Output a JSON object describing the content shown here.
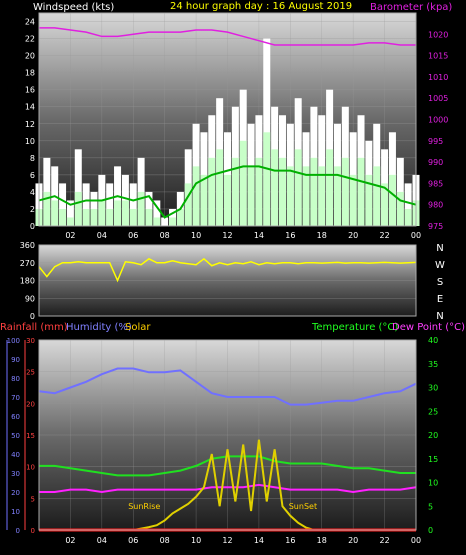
{
  "chart_data": [
    {
      "type": "line",
      "title": "24 hour graph day : 16 August 2019",
      "ylabel": "Windspeed (kts)",
      "y2label": "Barometer (kpa)",
      "ylim": [
        0,
        25
      ],
      "y2lim": [
        975,
        1025
      ],
      "yticks": [
        0,
        2,
        4,
        6,
        8,
        10,
        12,
        14,
        16,
        18,
        20,
        22,
        24
      ],
      "y2ticks": [
        975,
        980,
        985,
        990,
        995,
        1000,
        1005,
        1010,
        1015,
        1020
      ],
      "xticks": [
        "02",
        "04",
        "06",
        "08",
        "10",
        "12",
        "14",
        "16",
        "18",
        "20",
        "22",
        "00"
      ],
      "xlim": [
        0,
        24
      ],
      "grid": true,
      "colors": {
        "gust": "#ffffff",
        "speed": "#c8ffc8",
        "average": "#00b000",
        "barometer": "#e020e0",
        "title": "#ffff00"
      },
      "series": [
        {
          "name": "gust",
          "x": [
            0,
            0.5,
            1,
            1.5,
            2,
            2.5,
            3,
            3.5,
            4,
            4.5,
            5,
            5.5,
            6,
            6.5,
            7,
            7.5,
            8,
            8.5,
            9,
            9.5,
            10,
            10.5,
            11,
            11.5,
            12,
            12.5,
            13,
            13.5,
            14,
            14.5,
            15,
            15.5,
            16,
            16.5,
            17,
            17.5,
            18,
            18.5,
            19,
            19.5,
            20,
            20.5,
            21,
            21.5,
            22,
            22.5,
            23,
            23.5,
            24
          ],
          "values": [
            5,
            8,
            7,
            5,
            3,
            9,
            5,
            4,
            6,
            5,
            7,
            6,
            5,
            8,
            4,
            3,
            1,
            2,
            4,
            9,
            12,
            11,
            13,
            15,
            11,
            14,
            16,
            12,
            13,
            22,
            14,
            13,
            12,
            15,
            11,
            14,
            13,
            16,
            12,
            14,
            11,
            13,
            10,
            12,
            9,
            11,
            8,
            5,
            6
          ]
        },
        {
          "name": "speed",
          "x": [
            0,
            0.5,
            1,
            1.5,
            2,
            2.5,
            3,
            3.5,
            4,
            4.5,
            5,
            5.5,
            6,
            6.5,
            7,
            7.5,
            8,
            8.5,
            9,
            9.5,
            10,
            10.5,
            11,
            11.5,
            12,
            12.5,
            13,
            13.5,
            14,
            14.5,
            15,
            15.5,
            16,
            16.5,
            17,
            17.5,
            18,
            18.5,
            19,
            19.5,
            20,
            20.5,
            21,
            21.5,
            22,
            22.5,
            23,
            23.5,
            24
          ],
          "values": [
            2,
            4,
            3,
            2,
            1,
            4,
            2,
            2,
            3,
            2,
            3,
            3,
            2,
            4,
            2,
            1,
            0,
            1,
            2,
            5,
            7,
            6,
            8,
            9,
            6,
            8,
            10,
            7,
            8,
            11,
            9,
            8,
            7,
            9,
            7,
            8,
            7,
            9,
            7,
            8,
            6,
            8,
            6,
            7,
            5,
            6,
            4,
            2,
            3
          ]
        },
        {
          "name": "average",
          "x": [
            0,
            1,
            2,
            3,
            4,
            5,
            6,
            7,
            8,
            9,
            10,
            11,
            12,
            13,
            14,
            15,
            16,
            17,
            18,
            19,
            20,
            21,
            22,
            23,
            24
          ],
          "values": [
            3,
            3.5,
            2.5,
            3,
            3,
            3.5,
            3,
            3.5,
            1,
            2,
            5,
            6,
            6.5,
            7,
            7,
            6.5,
            6.5,
            6,
            6,
            6,
            5.5,
            5,
            4.5,
            3,
            2.5
          ]
        },
        {
          "name": "barometer",
          "x": [
            0,
            1,
            2,
            3,
            4,
            5,
            6,
            7,
            8,
            9,
            10,
            11,
            12,
            13,
            14,
            15,
            16,
            17,
            18,
            19,
            20,
            21,
            22,
            23,
            24
          ],
          "values": [
            1021.5,
            1021.5,
            1021,
            1020.5,
            1019.5,
            1019.5,
            1020,
            1020.5,
            1020.5,
            1020.5,
            1021,
            1021,
            1020.5,
            1019.5,
            1018.5,
            1017.5,
            1017.5,
            1017.5,
            1017.5,
            1017.5,
            1017.5,
            1018,
            1018,
            1017.5,
            1017.5
          ]
        }
      ]
    },
    {
      "type": "line",
      "ylim": [
        0,
        360
      ],
      "yticks": [
        0,
        90,
        180,
        270,
        360
      ],
      "compass": [
        "N",
        "W",
        "S",
        "E",
        "N"
      ],
      "xlim": [
        0,
        24
      ],
      "colors": {
        "direction": "#ffff00"
      },
      "series": [
        {
          "name": "direction",
          "x": [
            0,
            0.5,
            1,
            1.5,
            2,
            2.5,
            3,
            3.5,
            4,
            4.5,
            5,
            5.5,
            6,
            6.5,
            7,
            7.5,
            8,
            8.5,
            9,
            9.5,
            10,
            10.5,
            11,
            11.5,
            12,
            12.5,
            13,
            13.5,
            14,
            14.5,
            15,
            15.5,
            16,
            16.5,
            17,
            17.5,
            18,
            18.5,
            19,
            19.5,
            20,
            20.5,
            21,
            21.5,
            22,
            22.5,
            23,
            23.5,
            24
          ],
          "values": [
            250,
            200,
            250,
            270,
            270,
            275,
            270,
            270,
            270,
            270,
            180,
            275,
            270,
            260,
            290,
            270,
            270,
            280,
            270,
            265,
            260,
            290,
            255,
            270,
            260,
            270,
            265,
            275,
            260,
            270,
            265,
            270,
            270,
            265,
            270,
            270,
            268,
            270,
            272,
            268,
            270,
            270,
            268,
            270,
            272,
            270,
            268,
            270,
            272
          ]
        }
      ]
    },
    {
      "type": "line",
      "title_parts": [
        "Rainfall (mm)",
        "Humidity (%)",
        "Solar",
        "Temperature (°C)",
        "Dew Point (°C)"
      ],
      "yaxis_humidity": {
        "ticks": [
          0,
          10,
          20,
          30,
          40,
          50,
          60,
          70,
          80,
          90,
          100
        ],
        "lim": [
          0,
          100
        ]
      },
      "yaxis_rain": {
        "ticks": [
          0,
          5,
          10,
          15,
          20,
          25,
          30
        ],
        "lim": [
          0,
          30
        ]
      },
      "yaxis_temp": {
        "ticks": [
          0,
          5,
          10,
          15,
          20,
          25,
          30,
          35,
          40
        ],
        "lim": [
          0,
          40
        ]
      },
      "xticks": [
        "02",
        "04",
        "06",
        "08",
        "10",
        "12",
        "14",
        "16",
        "18",
        "20",
        "22",
        "00"
      ],
      "xlim": [
        0,
        24
      ],
      "annotations": [
        {
          "text": "SunRise",
          "x": 6.7
        },
        {
          "text": "SunSet",
          "x": 16.8
        }
      ],
      "colors": {
        "humidity": "#7070ff",
        "temperature": "#20e020",
        "dewpoint": "#ff20ff",
        "solar": "#e0d000",
        "rain": "#ff2020",
        "rain_label": "#ff4040",
        "humidity_label": "#8080ff",
        "solar_label": "#ffd000",
        "temp_label": "#20ff20",
        "dew_label": "#ff40ff"
      },
      "series": [
        {
          "name": "humidity",
          "axis": "humidity",
          "x": [
            0,
            1,
            2,
            3,
            4,
            5,
            6,
            7,
            8,
            9,
            10,
            11,
            12,
            13,
            14,
            15,
            16,
            17,
            18,
            19,
            20,
            21,
            22,
            23,
            24
          ],
          "values": [
            73,
            72,
            75,
            78,
            82,
            85,
            85,
            83,
            83,
            84,
            78,
            72,
            70,
            70,
            70,
            70,
            66,
            66,
            67,
            68,
            68,
            70,
            72,
            73,
            77
          ]
        },
        {
          "name": "temperature",
          "axis": "temp",
          "x": [
            0,
            1,
            2,
            3,
            4,
            5,
            6,
            7,
            8,
            9,
            10,
            11,
            12,
            13,
            14,
            15,
            16,
            17,
            18,
            19,
            20,
            21,
            22,
            23,
            24
          ],
          "values": [
            13.5,
            13.5,
            13,
            12.5,
            12,
            11.5,
            11.5,
            11.5,
            12,
            12.5,
            13.5,
            15,
            15.5,
            15.5,
            15.5,
            14.5,
            14,
            14,
            14,
            13.5,
            13,
            13,
            12.5,
            12,
            12
          ]
        },
        {
          "name": "dewpoint",
          "axis": "temp",
          "x": [
            0,
            1,
            2,
            3,
            4,
            5,
            6,
            7,
            8,
            9,
            10,
            11,
            12,
            13,
            14,
            15,
            16,
            17,
            18,
            19,
            20,
            21,
            22,
            23,
            24
          ],
          "values": [
            8,
            8,
            8.5,
            8.5,
            8,
            8.5,
            8.5,
            8.5,
            8.5,
            8.5,
            8.5,
            9,
            9,
            9,
            9.5,
            9,
            8.5,
            8.5,
            8.5,
            8.5,
            8,
            8.5,
            8.5,
            8.5,
            9
          ]
        },
        {
          "name": "solar",
          "axis": "temp",
          "x": [
            0,
            5,
            6,
            6.5,
            7,
            7.5,
            8,
            8.5,
            9,
            9.5,
            10,
            10.5,
            11,
            11.5,
            12,
            12.5,
            13,
            13.5,
            14,
            14.5,
            15,
            15.5,
            16,
            16.5,
            17,
            17.5,
            18,
            24
          ],
          "values": [
            0,
            0,
            0,
            0.3,
            0.6,
            1,
            2,
            3.5,
            4.5,
            5.5,
            7,
            9,
            16,
            5,
            17,
            6,
            18,
            4,
            19,
            6,
            17,
            5,
            3,
            1.5,
            0.5,
            0,
            0,
            0
          ]
        },
        {
          "name": "rain",
          "axis": "rain",
          "x": [
            0,
            24
          ],
          "values": [
            0,
            0
          ]
        }
      ]
    }
  ]
}
